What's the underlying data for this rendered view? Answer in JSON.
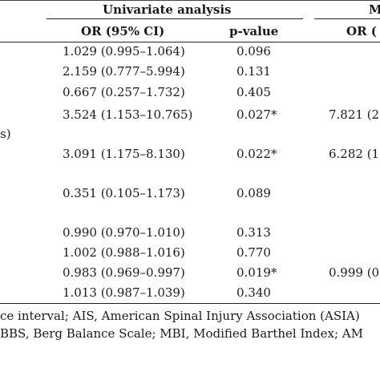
{
  "header": {
    "univariate": "Univariate analysis",
    "multivariate_partial": "M",
    "or_ci": "OR (95% CI)",
    "p_value": "p-value",
    "or_partial": "OR ("
  },
  "rows": [
    {
      "or": "1.029 (0.995–1.064)",
      "p": "0.096",
      "stub": "",
      "multi": ""
    },
    {
      "or": "2.159 (0.777–5.994)",
      "p": "0.131",
      "stub": "",
      "multi": ""
    },
    {
      "or": "0.667 (0.257–1.732)",
      "p": "0.405",
      "stub": "",
      "multi": ""
    },
    {
      "or": "3.524 (1.153–10.765)",
      "p": "0.027*",
      "stub": "s)",
      "multi": "7.821 (2"
    },
    {
      "or": "3.091 (1.175–8.130)",
      "p": "0.022*",
      "stub": "",
      "multi": "6.282 (1"
    },
    {
      "or": "0.351 (0.105–1.173)",
      "p": "0.089",
      "stub": "",
      "multi": ""
    },
    {
      "or": "0.990 (0.970–1.010)",
      "p": "0.313",
      "stub": "",
      "multi": ""
    },
    {
      "or": "1.002 (0.988–1.016)",
      "p": "0.770",
      "stub": "",
      "multi": ""
    },
    {
      "or": "0.983 (0.969–0.997)",
      "p": "0.019*",
      "stub": "",
      "multi": "0.999 (0"
    },
    {
      "or": "1.013 (0.987–1.039)",
      "p": "0.340",
      "stub": "",
      "multi": ""
    }
  ],
  "footnote": {
    "line1": "ce interval; AIS, American Spinal Injury Association (ASIA)",
    "line2": "BBS, Berg Balance Scale; MBI, Modified Barthel Index; AM"
  }
}
